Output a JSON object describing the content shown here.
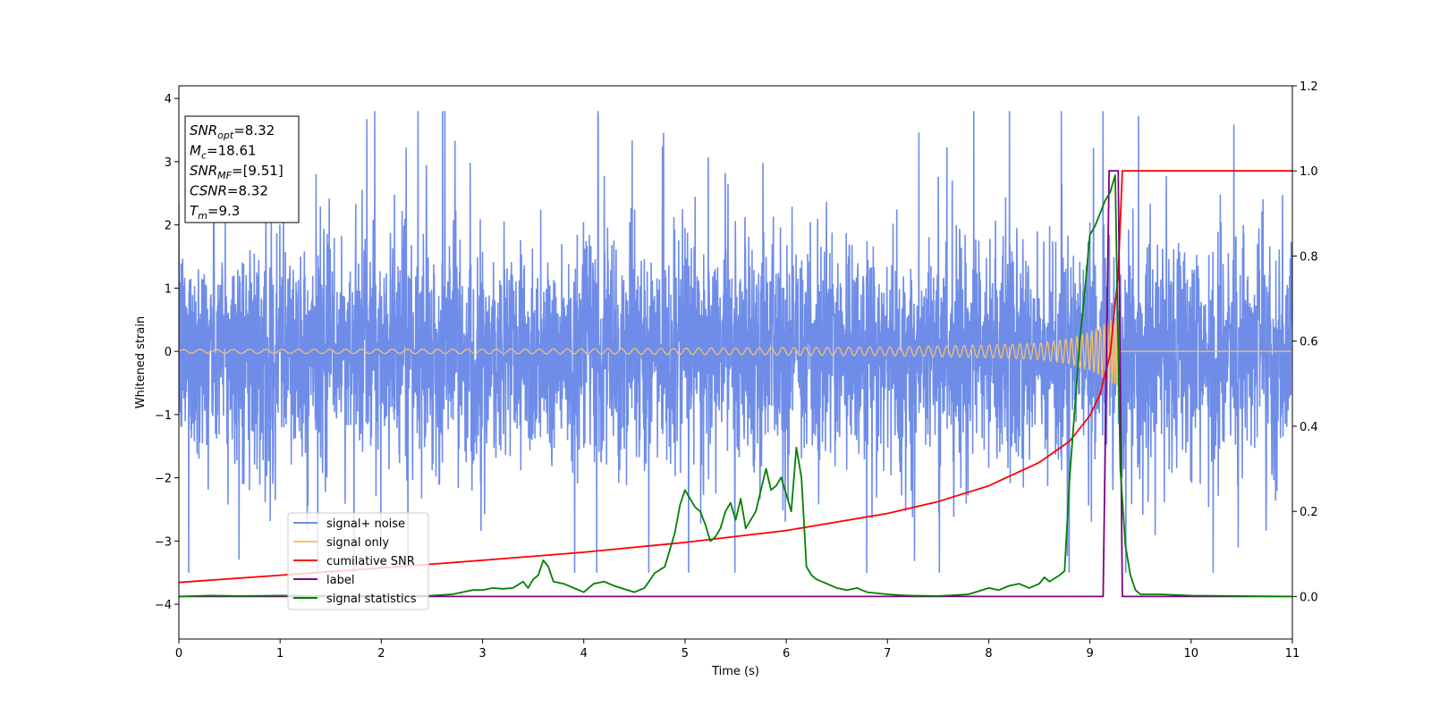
{
  "chart_data": {
    "type": "line",
    "xlabel": "Time (s)",
    "ylabel": "Whitened strain",
    "xlim": [
      0,
      11
    ],
    "ylim_left": [
      -4.55,
      4.2
    ],
    "ylim_right": [
      -0.1,
      1.2
    ],
    "xticks": [
      "0",
      "1",
      "2",
      "3",
      "4",
      "5",
      "6",
      "7",
      "8",
      "9",
      "10",
      "11"
    ],
    "yticks_left": [
      "4",
      "3",
      "2",
      "1",
      "0",
      "−1",
      "−2",
      "−3",
      "−4"
    ],
    "yticks_right": [
      "1.2",
      "1.0",
      "0.8",
      "0.6",
      "0.4",
      "0.2",
      "0.0"
    ],
    "grid": false,
    "legend_position": "lower-left",
    "annotation": {
      "lines": [
        {
          "base": "SNR",
          "sub": "opt",
          "value": "=8.32"
        },
        {
          "base": "M",
          "sub": "c",
          "value": "=18.61"
        },
        {
          "base": "SNR",
          "sub": "MF",
          "value": "=[9.51]"
        },
        {
          "base": "CSNR",
          "sub": "",
          "value": "=8.32"
        },
        {
          "base": "T",
          "sub": "m",
          "value": "=9.3"
        }
      ]
    },
    "series": [
      {
        "name": "signal+ noise",
        "axis": "left",
        "color": "#6f8de8",
        "style": "noise",
        "noise_sigma": 0.85,
        "peak_max": 3.8,
        "peak_min": -3.5
      },
      {
        "name": "signal only",
        "axis": "left",
        "color": "#f8c36b",
        "style": "chirp",
        "t_merge": 9.3,
        "x": [
          0,
          4,
          6,
          7,
          8,
          8.5,
          8.8,
          9.0,
          9.1,
          9.2,
          9.3
        ],
        "amplitude": [
          0.03,
          0.04,
          0.06,
          0.07,
          0.1,
          0.13,
          0.2,
          0.3,
          0.38,
          0.5,
          0.55
        ]
      },
      {
        "name": "cumilative SNR",
        "axis": "right",
        "color": "#ff0000",
        "x": [
          0,
          1,
          2,
          3,
          4,
          5,
          6,
          7,
          7.5,
          8,
          8.5,
          8.8,
          9.0,
          9.1,
          9.2,
          9.28,
          9.32,
          11
        ],
        "y": [
          0.033,
          0.05,
          0.067,
          0.085,
          0.104,
          0.127,
          0.155,
          0.195,
          0.223,
          0.26,
          0.315,
          0.365,
          0.425,
          0.475,
          0.57,
          0.76,
          1.0,
          1.0
        ]
      },
      {
        "name": "label",
        "axis": "right",
        "color": "#800080",
        "x": [
          0,
          9.13,
          9.19,
          9.28,
          9.32,
          11
        ],
        "y": [
          0.0,
          0.0,
          1.0,
          1.0,
          0.0,
          0.0
        ]
      },
      {
        "name": "signal statistics",
        "axis": "right",
        "color": "#008000",
        "x": [
          0,
          0.3,
          0.6,
          1.0,
          1.5,
          2.0,
          2.5,
          2.7,
          2.9,
          3.0,
          3.1,
          3.2,
          3.3,
          3.4,
          3.45,
          3.5,
          3.55,
          3.6,
          3.65,
          3.7,
          3.8,
          4.0,
          4.1,
          4.2,
          4.3,
          4.5,
          4.6,
          4.7,
          4.8,
          4.9,
          4.95,
          5.0,
          5.05,
          5.1,
          5.15,
          5.2,
          5.25,
          5.3,
          5.35,
          5.4,
          5.45,
          5.5,
          5.55,
          5.6,
          5.7,
          5.75,
          5.8,
          5.85,
          5.9,
          5.95,
          6.0,
          6.05,
          6.1,
          6.15,
          6.2,
          6.25,
          6.3,
          6.4,
          6.5,
          6.6,
          6.7,
          6.8,
          7.0,
          7.2,
          7.5,
          7.8,
          8.0,
          8.1,
          8.2,
          8.3,
          8.4,
          8.5,
          8.55,
          8.6,
          8.7,
          8.75,
          8.8,
          8.9,
          8.95,
          9.0,
          9.05,
          9.1,
          9.15,
          9.2,
          9.25,
          9.3,
          9.35,
          9.4,
          9.45,
          9.5,
          9.7,
          10.0,
          11
        ],
        "y": [
          0.0,
          0.002,
          0.001,
          0.002,
          0.001,
          0.001,
          0.002,
          0.005,
          0.015,
          0.015,
          0.02,
          0.018,
          0.02,
          0.035,
          0.02,
          0.04,
          0.05,
          0.085,
          0.07,
          0.035,
          0.03,
          0.01,
          0.03,
          0.035,
          0.025,
          0.01,
          0.02,
          0.055,
          0.07,
          0.15,
          0.215,
          0.25,
          0.23,
          0.21,
          0.2,
          0.17,
          0.13,
          0.14,
          0.16,
          0.2,
          0.22,
          0.18,
          0.23,
          0.16,
          0.2,
          0.25,
          0.3,
          0.25,
          0.26,
          0.28,
          0.24,
          0.2,
          0.35,
          0.28,
          0.07,
          0.05,
          0.04,
          0.03,
          0.02,
          0.015,
          0.02,
          0.01,
          0.005,
          0.002,
          0.001,
          0.005,
          0.02,
          0.015,
          0.025,
          0.03,
          0.02,
          0.03,
          0.045,
          0.035,
          0.05,
          0.06,
          0.28,
          0.6,
          0.72,
          0.85,
          0.87,
          0.9,
          0.93,
          0.95,
          0.99,
          0.3,
          0.12,
          0.05,
          0.015,
          0.005,
          0.005,
          0.002,
          0.0
        ]
      }
    ]
  }
}
